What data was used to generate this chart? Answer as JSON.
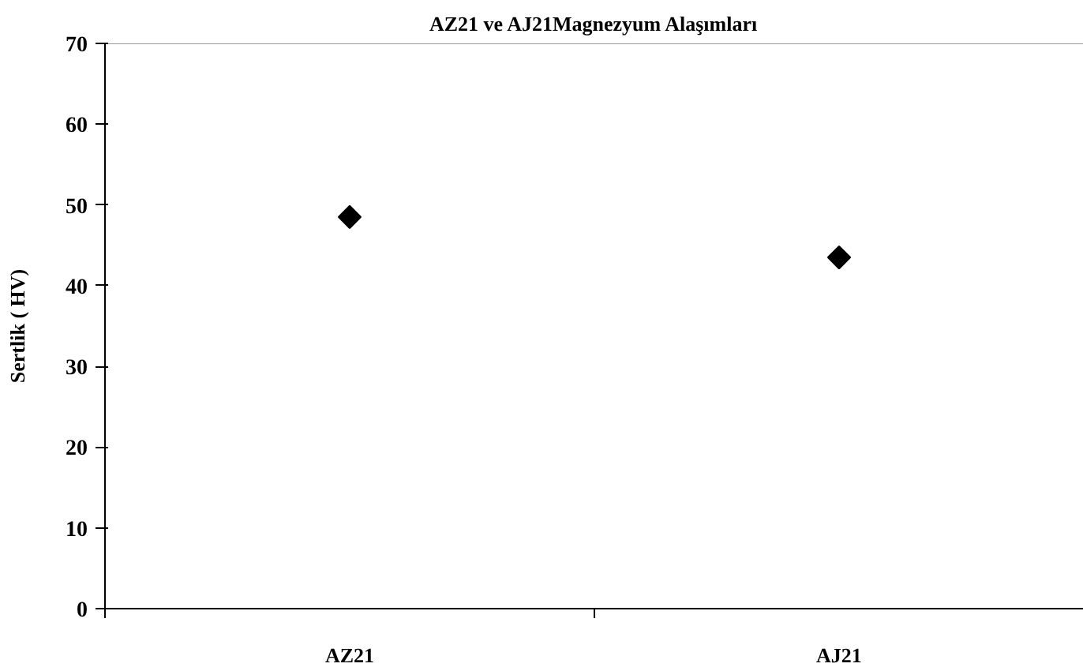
{
  "chart_data": {
    "type": "scatter",
    "title": "AZ21 ve AJ21Magnezyum Alaşımları",
    "ylabel": "Sertlik ( HV)",
    "categories": [
      "AZ21",
      "AJ21"
    ],
    "series": [
      {
        "color": "#000000",
        "values": [
          48.5,
          43.5
        ]
      }
    ],
    "marker": "diamond",
    "ylim": [
      0,
      70
    ],
    "yticks": [
      0,
      10,
      20,
      30,
      40,
      50,
      60,
      70
    ],
    "grid": false
  }
}
